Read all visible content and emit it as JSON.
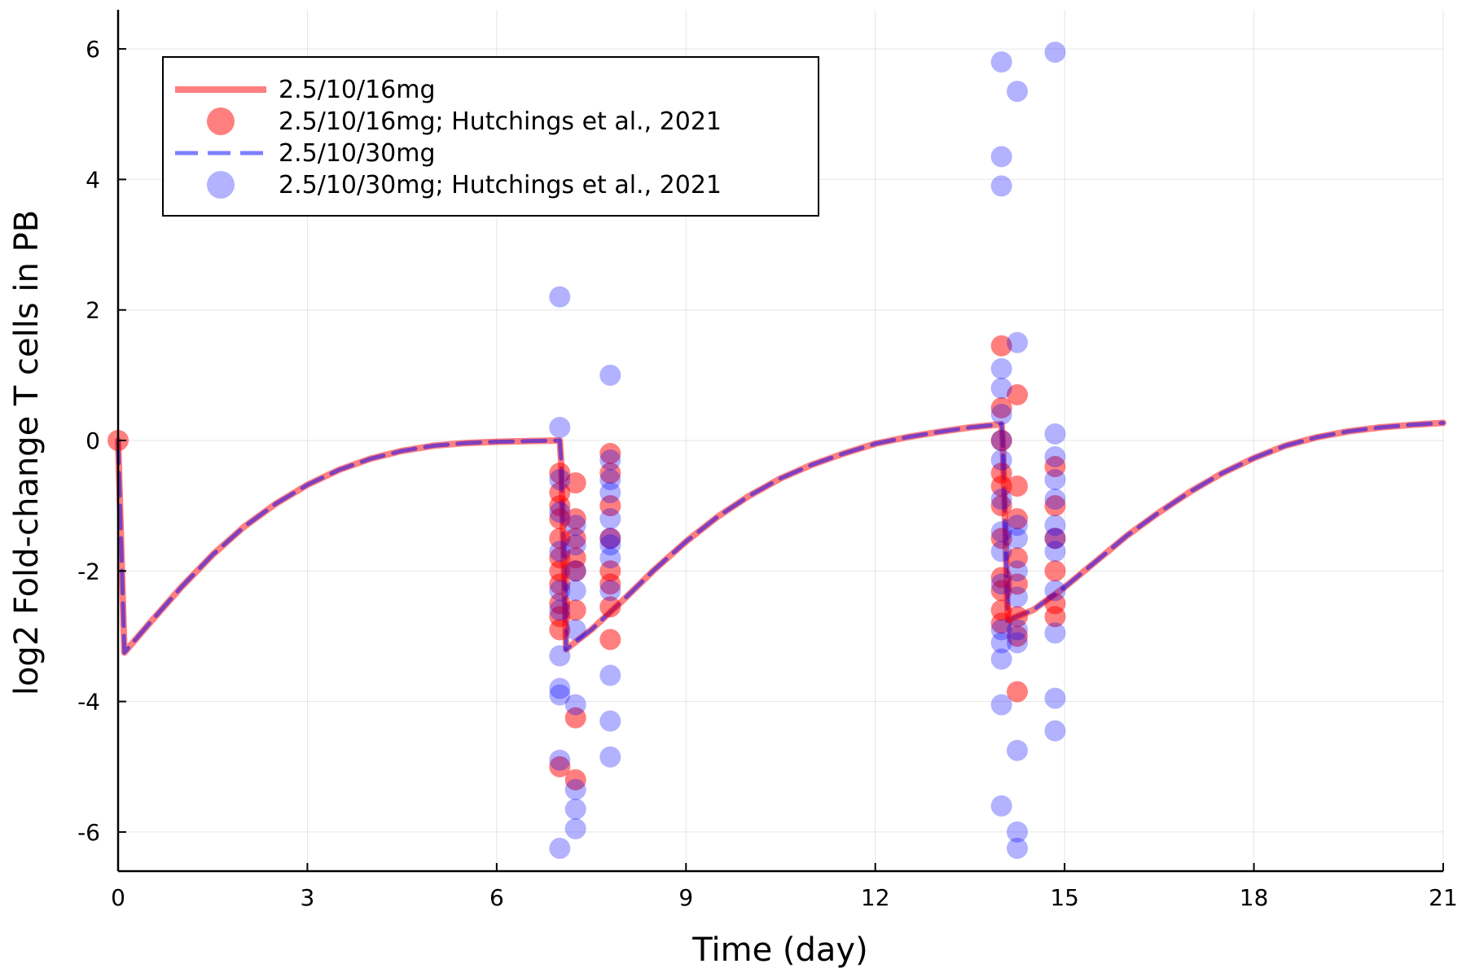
{
  "chart_data": {
    "type": "line",
    "title": "",
    "xlabel": "Time (day)",
    "ylabel": "log2 Fold-change T cells in PB",
    "xlim": [
      0,
      21
    ],
    "ylim": [
      -6.6,
      6.6
    ],
    "xticks": [
      0,
      3,
      6,
      9,
      12,
      15,
      18,
      21
    ],
    "yticks": [
      -6,
      -4,
      -2,
      0,
      2,
      4,
      6
    ],
    "grid": true,
    "legend_position": "top-left",
    "series": [
      {
        "name": "2.5/10/16mg",
        "kind": "line",
        "style": "solid",
        "color": "#ff0000",
        "x": [
          0,
          0.1,
          0.5,
          1,
          1.5,
          2,
          2.5,
          3,
          3.5,
          4,
          4.5,
          5,
          5.5,
          6,
          6.5,
          7,
          7.02,
          7.1,
          7.5,
          8,
          8.5,
          9,
          9.5,
          10,
          10.5,
          11,
          11.5,
          12,
          12.5,
          13,
          13.5,
          14,
          14.02,
          14.1,
          14.5,
          15,
          15.5,
          16,
          16.5,
          17,
          17.5,
          18,
          18.5,
          19,
          19.5,
          20,
          20.5,
          21
        ],
        "y": [
          0,
          -3.25,
          -2.8,
          -2.25,
          -1.75,
          -1.32,
          -0.97,
          -0.68,
          -0.45,
          -0.28,
          -0.16,
          -0.08,
          -0.04,
          -0.02,
          -0.01,
          0,
          -0.3,
          -3.2,
          -2.9,
          -2.45,
          -1.98,
          -1.55,
          -1.17,
          -0.85,
          -0.58,
          -0.37,
          -0.2,
          -0.05,
          0.05,
          0.13,
          0.2,
          0.25,
          0,
          -2.75,
          -2.6,
          -2.25,
          -1.85,
          -1.45,
          -1.1,
          -0.78,
          -0.5,
          -0.27,
          -0.08,
          0.05,
          0.14,
          0.2,
          0.24,
          0.27
        ]
      },
      {
        "name": "2.5/10/16mg; Hutchings et al., 2021",
        "kind": "scatter",
        "color": "#ff0000",
        "points": [
          [
            0,
            0
          ],
          [
            7.0,
            -0.8
          ],
          [
            7.0,
            -1.2
          ],
          [
            7.0,
            -1.5
          ],
          [
            7.0,
            -1.8
          ],
          [
            7.0,
            -2.0
          ],
          [
            7.0,
            -2.2
          ],
          [
            7.0,
            -2.5
          ],
          [
            7.0,
            -2.7
          ],
          [
            7.0,
            -2.9
          ],
          [
            7.0,
            -5.0
          ],
          [
            7.0,
            -0.5
          ],
          [
            7.0,
            -1.0
          ],
          [
            7.25,
            -0.65
          ],
          [
            7.25,
            -1.2
          ],
          [
            7.25,
            -1.5
          ],
          [
            7.25,
            -1.8
          ],
          [
            7.25,
            -2.0
          ],
          [
            7.25,
            -2.6
          ],
          [
            7.25,
            -4.25
          ],
          [
            7.25,
            -5.2
          ],
          [
            7.8,
            -0.2
          ],
          [
            7.8,
            -0.5
          ],
          [
            7.8,
            -1.0
          ],
          [
            7.8,
            -1.5
          ],
          [
            7.8,
            -2.0
          ],
          [
            7.8,
            -2.2
          ],
          [
            7.8,
            -2.55
          ],
          [
            7.8,
            -3.05
          ],
          [
            14.0,
            1.45
          ],
          [
            14.0,
            0.5
          ],
          [
            14.0,
            0.0
          ],
          [
            14.0,
            -0.5
          ],
          [
            14.0,
            -0.7
          ],
          [
            14.0,
            -1.0
          ],
          [
            14.0,
            -1.5
          ],
          [
            14.0,
            -2.1
          ],
          [
            14.0,
            -2.3
          ],
          [
            14.0,
            -2.6
          ],
          [
            14.0,
            -2.8
          ],
          [
            14.25,
            0.7
          ],
          [
            14.25,
            -0.7
          ],
          [
            14.25,
            -1.2
          ],
          [
            14.25,
            -1.8
          ],
          [
            14.25,
            -2.2
          ],
          [
            14.25,
            -2.7
          ],
          [
            14.25,
            -3.0
          ],
          [
            14.25,
            -3.85
          ],
          [
            14.85,
            -0.4
          ],
          [
            14.85,
            -1.0
          ],
          [
            14.85,
            -1.5
          ],
          [
            14.85,
            -2.0
          ],
          [
            14.85,
            -2.5
          ],
          [
            14.85,
            -2.7
          ]
        ]
      },
      {
        "name": "2.5/10/30mg",
        "kind": "line",
        "style": "dashed",
        "color": "#0000ff",
        "x": [
          0,
          0.1,
          0.5,
          1,
          1.5,
          2,
          2.5,
          3,
          3.5,
          4,
          4.5,
          5,
          5.5,
          6,
          6.5,
          7,
          7.02,
          7.1,
          7.5,
          8,
          8.5,
          9,
          9.5,
          10,
          10.5,
          11,
          11.5,
          12,
          12.5,
          13,
          13.5,
          14,
          14.02,
          14.1,
          14.5,
          15,
          15.5,
          16,
          16.5,
          17,
          17.5,
          18,
          18.5,
          19,
          19.5,
          20,
          20.5,
          21
        ],
        "y": [
          0,
          -3.25,
          -2.8,
          -2.25,
          -1.75,
          -1.32,
          -0.97,
          -0.68,
          -0.45,
          -0.28,
          -0.16,
          -0.08,
          -0.04,
          -0.02,
          -0.01,
          0,
          -0.3,
          -3.2,
          -2.9,
          -2.45,
          -1.98,
          -1.55,
          -1.17,
          -0.85,
          -0.58,
          -0.37,
          -0.2,
          -0.05,
          0.05,
          0.13,
          0.2,
          0.25,
          0,
          -2.75,
          -2.6,
          -2.25,
          -1.85,
          -1.45,
          -1.1,
          -0.78,
          -0.5,
          -0.27,
          -0.08,
          0.05,
          0.14,
          0.2,
          0.24,
          0.27
        ]
      },
      {
        "name": "2.5/10/30mg; Hutchings et al., 2021",
        "kind": "scatter",
        "color": "#0000ff",
        "points": [
          [
            7.0,
            2.2
          ],
          [
            7.0,
            0.2
          ],
          [
            7.0,
            -0.6
          ],
          [
            7.0,
            -1.1
          ],
          [
            7.0,
            -1.7
          ],
          [
            7.0,
            -2.3
          ],
          [
            7.0,
            -2.6
          ],
          [
            7.0,
            -3.3
          ],
          [
            7.0,
            -3.8
          ],
          [
            7.0,
            -3.9
          ],
          [
            7.0,
            -4.9
          ],
          [
            7.0,
            -6.25
          ],
          [
            7.25,
            -1.3
          ],
          [
            7.25,
            -1.6
          ],
          [
            7.25,
            -2.0
          ],
          [
            7.25,
            -2.3
          ],
          [
            7.25,
            -2.9
          ],
          [
            7.25,
            -4.05
          ],
          [
            7.25,
            -5.35
          ],
          [
            7.25,
            -5.65
          ],
          [
            7.25,
            -5.95
          ],
          [
            7.8,
            1.0
          ],
          [
            7.8,
            -0.3
          ],
          [
            7.8,
            -0.6
          ],
          [
            7.8,
            -0.8
          ],
          [
            7.8,
            -1.2
          ],
          [
            7.8,
            -1.5
          ],
          [
            7.8,
            -1.6
          ],
          [
            7.8,
            -1.8
          ],
          [
            7.8,
            -2.3
          ],
          [
            7.8,
            -3.6
          ],
          [
            7.8,
            -4.3
          ],
          [
            7.8,
            -4.85
          ],
          [
            14.0,
            5.8
          ],
          [
            14.0,
            4.35
          ],
          [
            14.0,
            3.9
          ],
          [
            14.0,
            1.1
          ],
          [
            14.0,
            0.8
          ],
          [
            14.0,
            0.4
          ],
          [
            14.0,
            0.0
          ],
          [
            14.0,
            -0.3
          ],
          [
            14.0,
            -0.9
          ],
          [
            14.0,
            -1.4
          ],
          [
            14.0,
            -1.7
          ],
          [
            14.0,
            -2.2
          ],
          [
            14.0,
            -2.9
          ],
          [
            14.0,
            -3.1
          ],
          [
            14.0,
            -3.35
          ],
          [
            14.0,
            -4.05
          ],
          [
            14.0,
            -5.6
          ],
          [
            14.25,
            5.35
          ],
          [
            14.25,
            1.5
          ],
          [
            14.25,
            -1.3
          ],
          [
            14.25,
            -1.5
          ],
          [
            14.25,
            -2.0
          ],
          [
            14.25,
            -2.4
          ],
          [
            14.25,
            -2.9
          ],
          [
            14.25,
            -3.1
          ],
          [
            14.25,
            -4.75
          ],
          [
            14.25,
            -6.0
          ],
          [
            14.25,
            -6.25
          ],
          [
            14.85,
            5.95
          ],
          [
            14.85,
            0.1
          ],
          [
            14.85,
            -0.25
          ],
          [
            14.85,
            -0.6
          ],
          [
            14.85,
            -0.9
          ],
          [
            14.85,
            -1.3
          ],
          [
            14.85,
            -1.5
          ],
          [
            14.85,
            -1.7
          ],
          [
            14.85,
            -2.3
          ],
          [
            14.85,
            -2.95
          ],
          [
            14.85,
            -3.95
          ],
          [
            14.85,
            -4.45
          ]
        ]
      }
    ]
  }
}
